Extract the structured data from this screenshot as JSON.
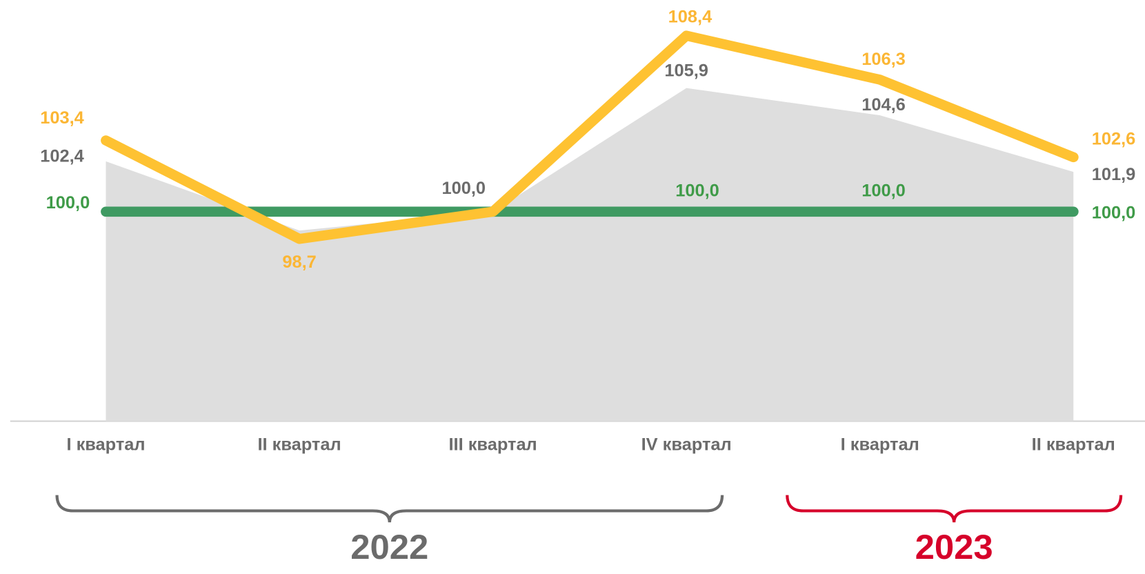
{
  "chart_data": {
    "type": "line",
    "categories": [
      "I квартал",
      "II квартал",
      "III квартал",
      "IV квартал",
      "I квартал",
      "II квартал"
    ],
    "series": [
      {
        "kind": "area",
        "color": "#dedede",
        "label_color": "#6b6b6b",
        "values": [
          102.4,
          99.1,
          100.0,
          105.9,
          104.6,
          101.9
        ],
        "value_labels": [
          "102,4",
          null,
          "100,0",
          "105,9",
          "104,6",
          "101,9"
        ]
      },
      {
        "kind": "line",
        "color": "#3f9a62",
        "label_color": "#3f9b48",
        "values": [
          100.0,
          100.0,
          100.0,
          100.0,
          100.0,
          100.0
        ],
        "value_labels": [
          "100,0",
          null,
          null,
          "100,0",
          "100,0",
          "100,0"
        ]
      },
      {
        "kind": "line",
        "color": "#fec232",
        "label_color": "#fbb634",
        "values": [
          103.4,
          98.7,
          100.0,
          108.4,
          106.3,
          102.6
        ],
        "value_labels": [
          "103,4",
          "98,7",
          null,
          "108,4",
          "106,3",
          "102,6"
        ]
      }
    ],
    "ylim": [
      90,
      110
    ],
    "groups": [
      {
        "label": "2022",
        "span": 4,
        "color": "#6b6b6b"
      },
      {
        "label": "2023",
        "span": 2,
        "color": "#d6002a"
      }
    ]
  }
}
